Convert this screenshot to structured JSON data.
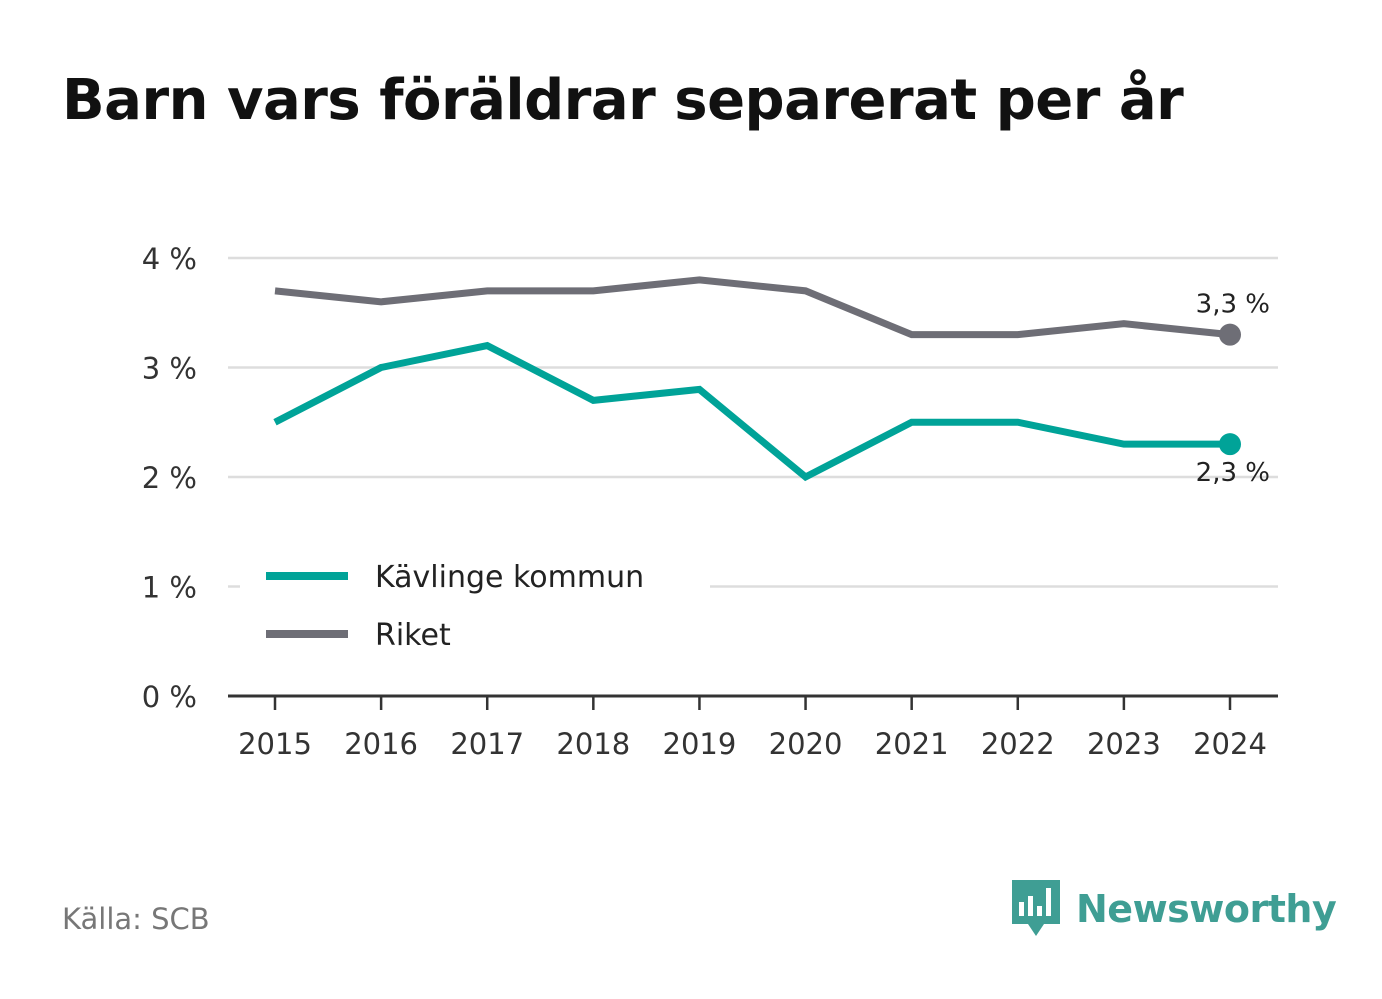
{
  "title": "Barn vars föräldrar separerat per år",
  "source": "Källa: SCB",
  "brand": {
    "name": "Newsworthy",
    "icon": "bar-chart-speech-bubble-icon",
    "color": "#3f9e94"
  },
  "chart_data": {
    "type": "line",
    "title": "Barn vars föräldrar separerat per år",
    "x": [
      "2015",
      "2016",
      "2017",
      "2018",
      "2019",
      "2020",
      "2021",
      "2022",
      "2023",
      "2024"
    ],
    "ylim": [
      0,
      4
    ],
    "yticks": [
      0,
      1,
      2,
      3,
      4
    ],
    "ytick_labels": [
      "0 %",
      "1 %",
      "2 %",
      "3 %",
      "4 %"
    ],
    "grid": true,
    "legend_position": "bottom-left",
    "series": [
      {
        "name": "Kävlinge kommun",
        "color": "#00a398",
        "values": [
          2.5,
          3.0,
          3.2,
          2.7,
          2.8,
          2.0,
          2.5,
          2.5,
          2.3,
          2.3
        ],
        "end_label": "2,3 %"
      },
      {
        "name": "Riket",
        "color": "#6e6e76",
        "values": [
          3.7,
          3.6,
          3.7,
          3.7,
          3.8,
          3.7,
          3.3,
          3.3,
          3.4,
          3.3
        ],
        "end_label": "3,3 %"
      }
    ]
  }
}
